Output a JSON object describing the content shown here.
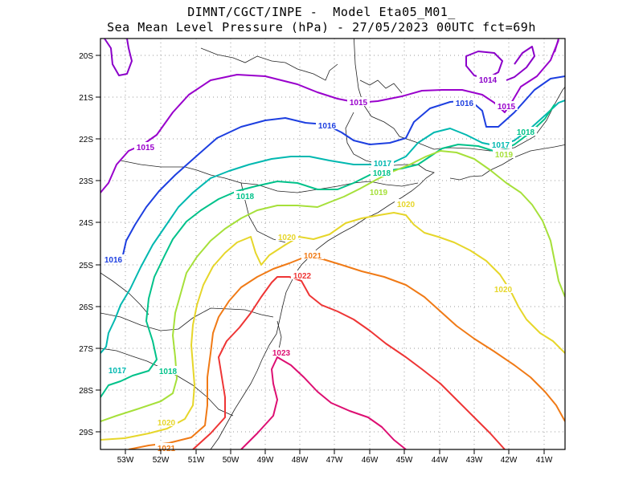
{
  "title_line1": "DIMNT/CGCT/INPE -  Model Eta05_M01_",
  "title_line2": "Sea Mean Level Pressure (hPa) - 27/05/2023 00UTC fct=69h",
  "axes": {
    "lon_ticks": [
      "53W",
      "52W",
      "51W",
      "50W",
      "49W",
      "48W",
      "47W",
      "46W",
      "45W",
      "44W",
      "43W",
      "42W",
      "41W"
    ],
    "lat_ticks": [
      "20S",
      "21S",
      "22S",
      "23S",
      "24S",
      "25S",
      "26S",
      "27S",
      "28S",
      "29S"
    ]
  },
  "isobars": [
    {
      "value": "1014",
      "color": "#8b00c9"
    },
    {
      "value": "1015",
      "color": "#9900cc"
    },
    {
      "value": "1016",
      "color": "#1d3fe0"
    },
    {
      "value": "1017",
      "color": "#00b8b0"
    },
    {
      "value": "1018",
      "color": "#00c28a"
    },
    {
      "value": "1019",
      "color": "#a6e03a"
    },
    {
      "value": "1020",
      "color": "#e6d62a"
    },
    {
      "value": "1021",
      "color": "#f07a16"
    },
    {
      "value": "1022",
      "color": "#ee3535"
    },
    {
      "value": "1023",
      "color": "#dd0f72"
    }
  ],
  "contour_labels": [
    {
      "text": "1014",
      "color": "#8b00c9"
    },
    {
      "text": "1015",
      "color": "#9900cc"
    },
    {
      "text": "1015",
      "color": "#9900cc"
    },
    {
      "text": "1015",
      "color": "#9900cc"
    },
    {
      "text": "1016",
      "color": "#1d3fe0"
    },
    {
      "text": "1016",
      "color": "#1d3fe0"
    },
    {
      "text": "1016",
      "color": "#1d3fe0"
    },
    {
      "text": "1017",
      "color": "#00b8b0"
    },
    {
      "text": "1017",
      "color": "#00b8b0"
    },
    {
      "text": "1017",
      "color": "#00b8b0"
    },
    {
      "text": "1018",
      "color": "#00c28a"
    },
    {
      "text": "1018",
      "color": "#00c28a"
    },
    {
      "text": "1018",
      "color": "#00c28a"
    },
    {
      "text": "1018",
      "color": "#00c28a"
    },
    {
      "text": "1019",
      "color": "#a6e03a"
    },
    {
      "text": "1019",
      "color": "#a6e03a"
    },
    {
      "text": "1020",
      "color": "#e6d62a"
    },
    {
      "text": "1020",
      "color": "#e6d62a"
    },
    {
      "text": "1020",
      "color": "#e6d62a"
    },
    {
      "text": "1020",
      "color": "#e6d62a"
    },
    {
      "text": "1021",
      "color": "#f07a16"
    },
    {
      "text": "1021",
      "color": "#f07a16"
    },
    {
      "text": "1022",
      "color": "#ee3535"
    },
    {
      "text": "1023",
      "color": "#dd0f72"
    }
  ]
}
